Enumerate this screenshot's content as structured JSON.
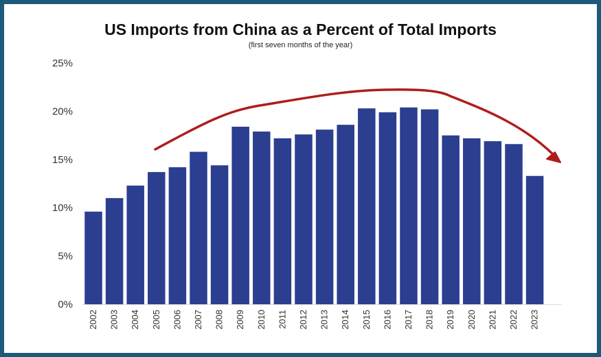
{
  "chart_data": {
    "type": "bar",
    "title": "US Imports from China as a Percent of Total Imports",
    "subtitle": "(first seven months of the year)",
    "categories": [
      "2002",
      "2003",
      "2004",
      "2005",
      "2006",
      "2007",
      "2008",
      "2009",
      "2010",
      "2011",
      "2012",
      "2013",
      "2014",
      "2015",
      "2016",
      "2017",
      "2018",
      "2019",
      "2020",
      "2021",
      "2022",
      "2023"
    ],
    "values": [
      9.6,
      11.0,
      12.3,
      13.7,
      14.2,
      15.8,
      14.4,
      18.4,
      17.9,
      17.2,
      17.6,
      18.1,
      18.6,
      20.3,
      19.9,
      20.4,
      20.2,
      17.5,
      17.2,
      16.9,
      16.6,
      13.3
    ],
    "ylim": [
      0,
      25
    ],
    "yticks": [
      "0%",
      "5%",
      "10%",
      "15%",
      "20%",
      "25%"
    ],
    "xlabel": "",
    "ylabel": "",
    "grid": false,
    "colors": {
      "bar": "#2c3e8f",
      "trend_arrow": "#b01c1c",
      "frame": "#1c5a7a"
    }
  }
}
